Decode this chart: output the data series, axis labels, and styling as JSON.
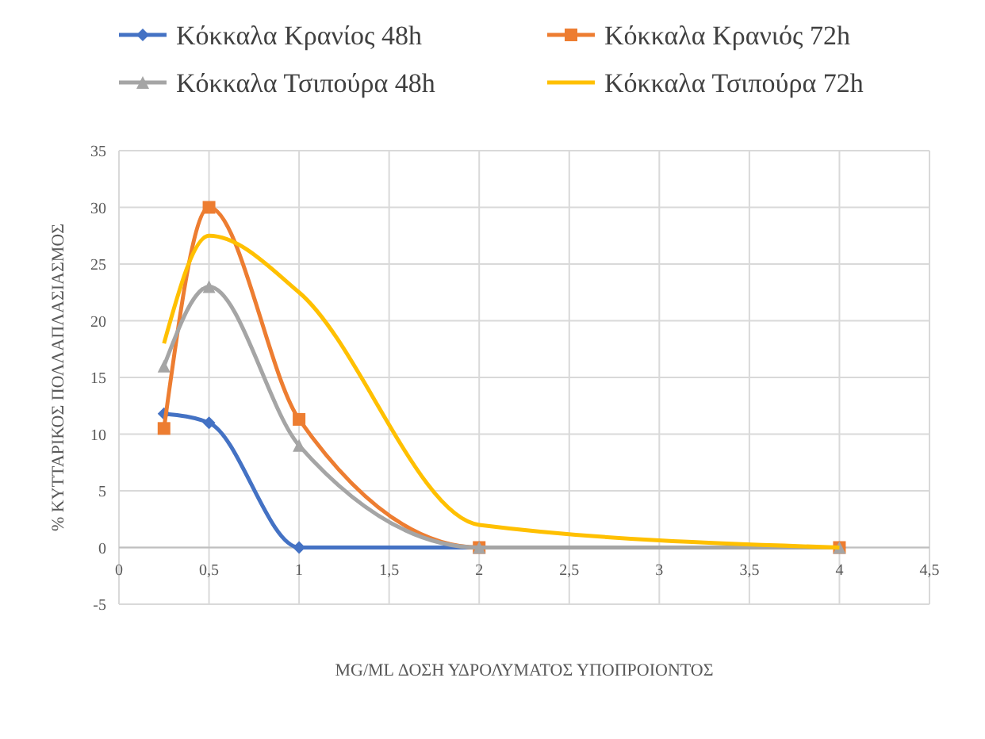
{
  "chart_data": {
    "type": "line",
    "xlabel": "MG/ML ΔΟΣΗ ΥΔΡΟΛΥΜΑΤΟΣ ΥΠΟΠΡΟΙΟΝΤΟΣ",
    "ylabel": "% ΚΥΤΤΑΡΙΚΟΣ ΠΟΛΛΑΠΛΑΣΙΑΣΜΟΣ",
    "x": [
      0.25,
      0.5,
      1,
      2,
      4
    ],
    "series": [
      {
        "name": "Κόκκαλα Κρανίος 48h",
        "color": "#4472c4",
        "marker": "diamond",
        "values": [
          11.8,
          11,
          0,
          0,
          0
        ]
      },
      {
        "name": "Κόκκαλα Κρανιός 72h",
        "color": "#ed7d31",
        "marker": "square",
        "values": [
          10.5,
          30,
          11.3,
          0,
          0
        ]
      },
      {
        "name": "Κόκκαλα Τσιπούρα 48h",
        "color": "#a5a5a5",
        "marker": "triangle",
        "values": [
          16,
          23,
          9,
          0,
          0
        ]
      },
      {
        "name": "Κόκκαλα Τσιπούρα 72h",
        "color": "#ffc000",
        "marker": "none",
        "values": [
          18,
          27.5,
          22.5,
          2,
          0
        ]
      }
    ],
    "xlim": [
      0,
      4.5
    ],
    "xticks": [
      0,
      {
        "value": 0.5,
        "label": "0,5"
      },
      1,
      {
        "value": 1.5,
        "label": "1,5"
      },
      2,
      {
        "value": 2.5,
        "label": "2,5"
      },
      3,
      {
        "value": 3.5,
        "label": "3,5"
      },
      4,
      {
        "value": 4.5,
        "label": "4,5"
      }
    ],
    "ylim": [
      -5,
      35
    ],
    "yticks": [
      -5,
      0,
      5,
      10,
      15,
      20,
      25,
      30,
      35
    ],
    "grid": true,
    "legend": "top",
    "line_style": "solid"
  }
}
